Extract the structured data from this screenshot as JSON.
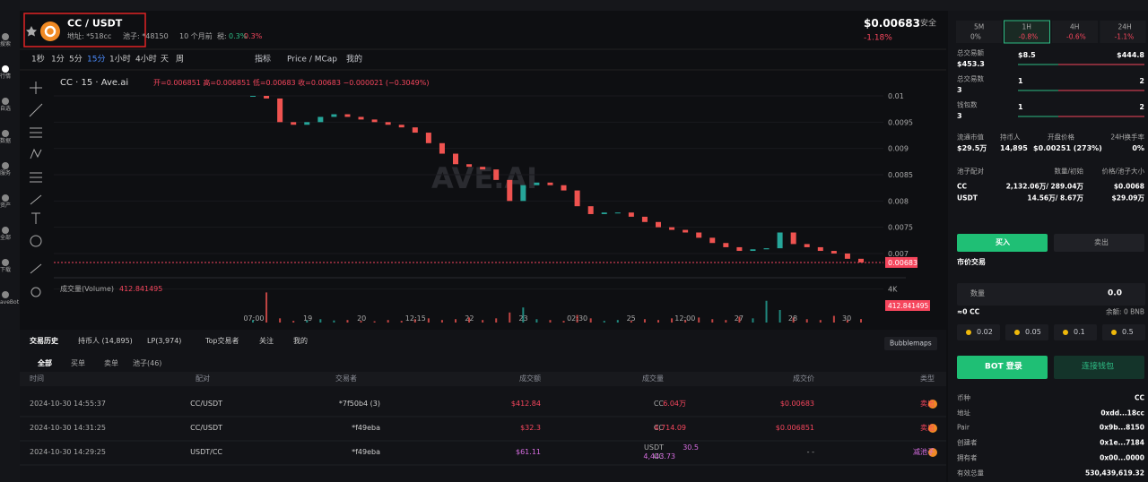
{
  "nav": [
    "搜索",
    "行情",
    "自选",
    "数据",
    "服务",
    "资产",
    "全部",
    "下载",
    "aveBot"
  ],
  "header": {
    "symbol": "CC / USDT",
    "address": "地址: *518cc",
    "pool": "池子: *48150",
    "age": "10 个月前",
    "tax": "税:",
    "tax_buy": "0.3%",
    "tax_sell": "0.3%",
    "price": "$0.00683",
    "change": "-1.18%",
    "safety": "安全"
  },
  "toolbar": {
    "intervals": [
      "1秒",
      "1分",
      "5分",
      "15分",
      "1小时",
      "4小时",
      "天",
      "周"
    ],
    "active": "15分",
    "indicator": "指标",
    "price_mcap": "Price / MCap",
    "mine": "我的"
  },
  "chart_data": {
    "type": "candlestick",
    "title": "CC · 15 · Ave.ai",
    "ohlc": "开=0.006851 高=0.006851 低=0.00683 收=0.00683 −0.000021 (−0.3049%)",
    "watermark": "AVE.AI",
    "x_labels": [
      "07:00",
      "19",
      "20",
      "12:15",
      "22",
      "23",
      "02:30",
      "25",
      "12:00",
      "27",
      "28",
      "30"
    ],
    "values": [
      0.01,
      0.00995,
      0.0095,
      0.00945,
      0.0095,
      0.0096,
      0.00965,
      0.0096,
      0.00955,
      0.0095,
      0.00945,
      0.0094,
      0.0093,
      0.0091,
      0.0089,
      0.0087,
      0.00865,
      0.0086,
      0.0084,
      0.008,
      0.0083,
      0.00835,
      0.0083,
      0.0082,
      0.0079,
      0.00775,
      0.00778,
      0.00778,
      0.0077,
      0.0076,
      0.0075,
      0.00745,
      0.0074,
      0.0073,
      0.0072,
      0.00712,
      0.00705,
      0.00708,
      0.0071,
      0.0074,
      0.00718,
      0.00712,
      0.00705,
      0.007,
      0.0069,
      0.00683
    ],
    "ylim": [
      0.0065,
      0.0103
    ],
    "yticks": [
      0.01,
      0.0095,
      0.009,
      0.0085,
      0.008,
      0.0075,
      0.007
    ],
    "color_up": "#26a69a",
    "color_down": "#ef5350",
    "volume": {
      "title": "成交量(Volume)",
      "values": [
        300,
        3600,
        500,
        200,
        300,
        400,
        250,
        300,
        200,
        150,
        300,
        200,
        400,
        500,
        300,
        400,
        600,
        300,
        500,
        1200,
        1800,
        400,
        300,
        200,
        900,
        500,
        200,
        300,
        200,
        400,
        300,
        500,
        300,
        600,
        400,
        300,
        700,
        500,
        2600,
        1500,
        600,
        400,
        300,
        800,
        300,
        412.841495
      ],
      "ylim": [
        0,
        4500
      ],
      "yticks": [
        {
          "value": 4000,
          "label": "4K"
        }
      ]
    }
  },
  "trades": {
    "tabs": [
      "交易历史",
      "持币人 (14,895)",
      "LP(3,974)",
      "Top交易者",
      "关注",
      "我的"
    ],
    "bubblemaps": "Bubblemaps",
    "filters": [
      "全部",
      "买单",
      "卖单",
      "池子(46)"
    ],
    "columns": [
      "时间",
      "类型",
      "成交价",
      "成交量",
      "成交额",
      "交易者",
      "配对"
    ],
    "rows": [
      {
        "time": "2024-10-30 14:55:37",
        "type": "卖出",
        "price": "$0.00683",
        "amount": "6.04万",
        "unit": "CC",
        "value": "$412.84",
        "trader": "*7f50b4 (3)",
        "pair": "CC/USDT"
      },
      {
        "time": "2024-10-30 14:31:25",
        "type": "卖出",
        "price": "$0.006851",
        "amount": "4,714.09",
        "unit": "CC",
        "value": "$32.3",
        "trader": "*f49eba",
        "pair": "CC/USDT"
      },
      {
        "time": "2024-10-30 14:29:25",
        "type": "减池子",
        "price": "- -",
        "amount": "30.5",
        "unit": "USDT",
        "amount2": "4,443.73",
        "unit2": "CC",
        "value": "$61.11",
        "trader": "*f49eba",
        "pair": "USDT/CC"
      }
    ]
  },
  "panel": {
    "periods": [
      {
        "label": "5M",
        "value": "0%"
      },
      {
        "label": "1H",
        "value": "-0.8%"
      },
      {
        "label": "4H",
        "value": "-0.6%"
      },
      {
        "label": "24H",
        "value": "-1.1%"
      }
    ],
    "stats": [
      {
        "label": "总交易额",
        "value": "$453.3",
        "buy": "$8.5",
        "sell": "$444.8"
      },
      {
        "label": "总交易数",
        "value": "3",
        "buy": "1",
        "sell": "2"
      },
      {
        "label": "钱包数",
        "value": "3",
        "buy": "1",
        "sell": "2"
      }
    ],
    "market": [
      {
        "label": "流通市值",
        "value": "$29.5万"
      },
      {
        "label": "持币人",
        "value": "14,895"
      },
      {
        "label": "开盘价格",
        "value": "$0.00251 (273%)"
      },
      {
        "label": "24H换手率",
        "value": "0%"
      }
    ],
    "pool": {
      "header": [
        "池子配对",
        "数量/初始",
        "价格/池子大小"
      ],
      "rows": [
        [
          "CC",
          "2,132.06万/ 289.04万",
          "$0.0068"
        ],
        [
          "USDT",
          "14.56万/ 8.67万",
          "$29.09万"
        ]
      ]
    },
    "buy": "买入",
    "sell": "卖出",
    "mode": "市价交易",
    "amount_label": "数量",
    "amount": "0.0",
    "estimate": "≈0 CC",
    "balance": "余额: 0 BNB",
    "presets": [
      "0.02",
      "0.05",
      "0.1",
      "0.5"
    ],
    "bot_login": "BOT 登录",
    "connect": "连接钱包",
    "info": [
      [
        "币种",
        "CC"
      ],
      [
        "地址",
        "0xdd...18cc"
      ],
      [
        "Pair",
        "0x9b...8150"
      ],
      [
        "创建者",
        "0x1e...7184"
      ],
      [
        "拥有者",
        "0x00...0000"
      ],
      [
        "有效总量",
        "530,439,619.32"
      ]
    ]
  }
}
